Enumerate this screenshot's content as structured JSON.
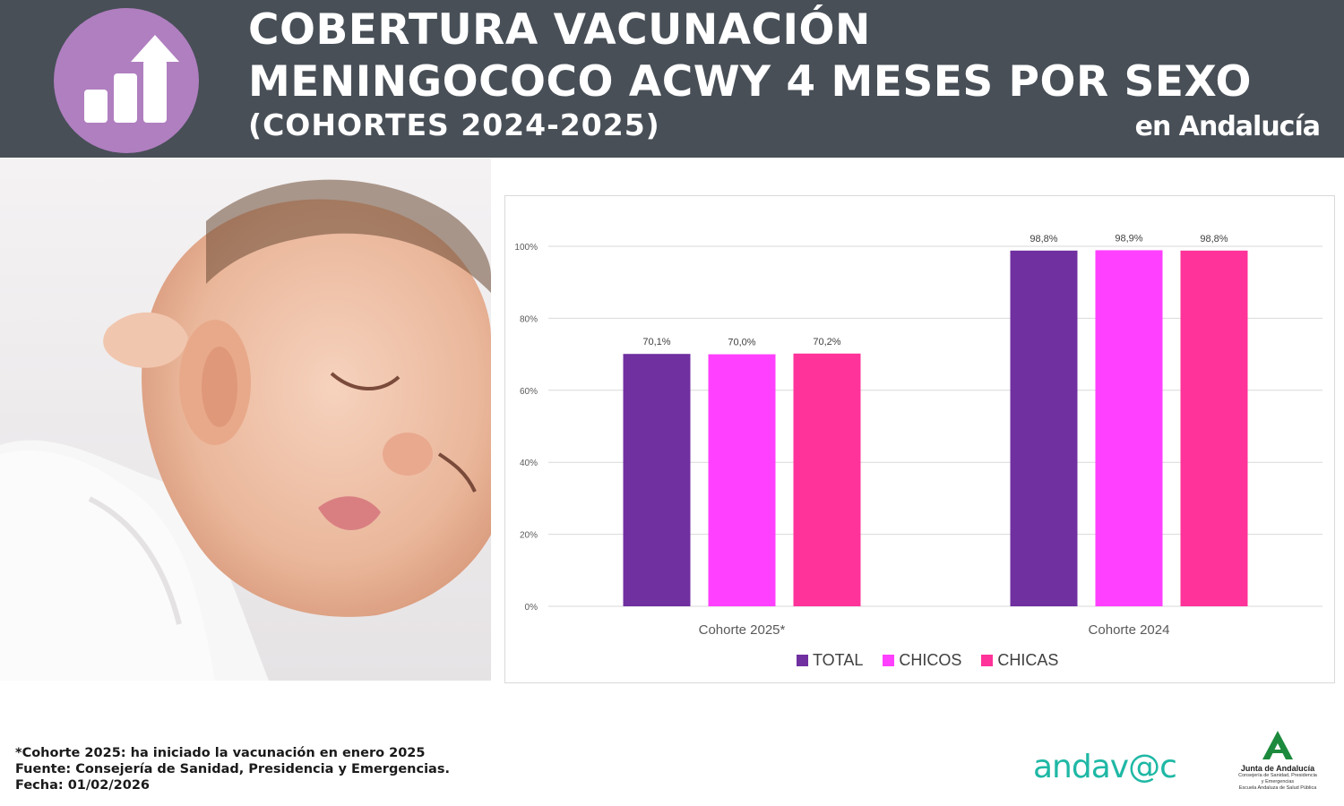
{
  "header": {
    "title_line1": "COBERTURA VACUNACIÓN",
    "title_line2": "MENINGOCOCO ACWY 4 MESES POR SEXO",
    "title_line3": "(COHORTES 2024-2025)",
    "region": "en Andalucía",
    "icon": "bar-chart-up-arrow-icon"
  },
  "colors": {
    "header_bg": "#484f57",
    "icon_circle": "#b07fc0",
    "total": "#7030a0",
    "chicos": "#ff40ff",
    "chicas": "#ff3399",
    "andavac": "#1fb8a5",
    "junta_green": "#1c8a3c"
  },
  "chart_data": {
    "type": "bar",
    "categories": [
      "Cohorte 2025*",
      "Cohorte 2024"
    ],
    "series": [
      {
        "name": "TOTAL",
        "values": [
          70.1,
          98.8
        ],
        "labels": [
          "70,1%",
          "98,8%"
        ]
      },
      {
        "name": "CHICOS",
        "values": [
          70.0,
          98.9
        ],
        "labels": [
          "70,0%",
          "98,9%"
        ]
      },
      {
        "name": "CHICAS",
        "values": [
          70.2,
          98.8
        ],
        "labels": [
          "70,2%",
          "98,8%"
        ]
      }
    ],
    "ylim": [
      0,
      100
    ],
    "yticks": [
      0,
      20,
      40,
      60,
      80,
      100
    ],
    "ytick_labels": [
      "0%",
      "20%",
      "40%",
      "60%",
      "80%",
      "100%"
    ],
    "grid": true,
    "legend": "bottom"
  },
  "footer": {
    "note": "*Cohorte 2025: ha iniciado la vacunación en enero 2025",
    "source": "Fuente: Consejería de Sanidad, Presidencia y Emergencias.",
    "date": "Fecha: 01/02/2026"
  },
  "logos": {
    "andavac": "andav@c",
    "junta_name": "Junta de Andalucía",
    "junta_dept_1": "Consejería de Sanidad, Presidencia",
    "junta_dept_2": "y Emergencias",
    "junta_school": "Escuela Andaluza de Salud Pública"
  }
}
